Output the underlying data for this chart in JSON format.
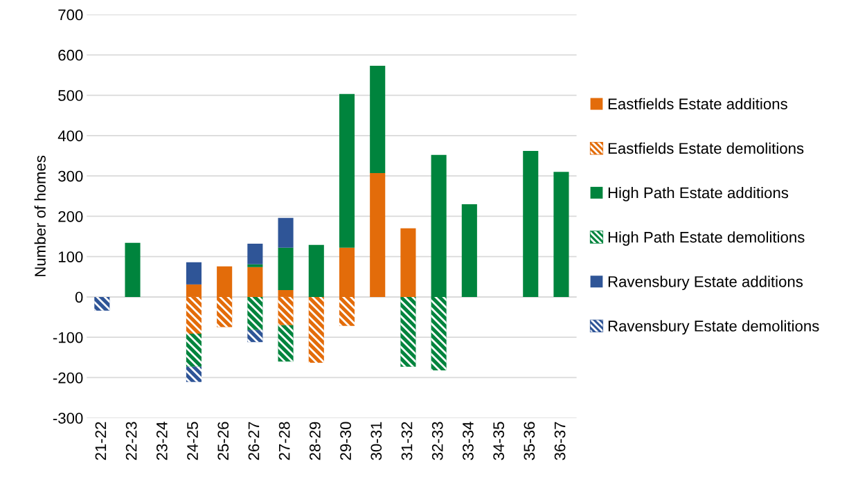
{
  "chart_data": {
    "type": "bar",
    "stacked": true,
    "ylabel": "Number of homes",
    "categories": [
      "21-22",
      "22-23",
      "23-24",
      "24-25",
      "25-26",
      "26-27",
      "27-28",
      "28-29",
      "29-30",
      "30-31",
      "31-32",
      "32-33",
      "33-34",
      "34-35",
      "35-36",
      "36-37"
    ],
    "series": [
      {
        "name": "Eastfields Estate additions",
        "color": "#e36c0a",
        "values": [
          null,
          null,
          null,
          31,
          76,
          74,
          17,
          null,
          122,
          307,
          170,
          null,
          null,
          null,
          null,
          null
        ]
      },
      {
        "name": "Eastfields Estate demolitions",
        "color": "#e36c0a",
        "values": [
          null,
          null,
          null,
          -91,
          -75,
          null,
          -70,
          -163,
          -72,
          null,
          null,
          null,
          null,
          null,
          null,
          null
        ]
      },
      {
        "name": "High Path Estate additions",
        "color": "#00843d",
        "values": [
          null,
          134,
          null,
          null,
          null,
          7,
          105,
          129,
          381,
          266,
          null,
          352,
          230,
          null,
          362,
          310
        ]
      },
      {
        "name": "High Path Estate demolitions",
        "color": "#00843d",
        "values": [
          null,
          null,
          null,
          -82,
          null,
          -82,
          -90,
          null,
          null,
          null,
          -173,
          -182,
          null,
          null,
          null,
          null
        ]
      },
      {
        "name": "Ravensbury Estate additions",
        "color": "#2f5597",
        "values": [
          null,
          null,
          null,
          55,
          null,
          51,
          74,
          null,
          null,
          null,
          null,
          null,
          null,
          null,
          null,
          null
        ]
      },
      {
        "name": "Ravensbury Estate demolitions",
        "color": "#2f5597",
        "values": [
          -34,
          null,
          null,
          -38,
          null,
          -30,
          null,
          null,
          null,
          null,
          null,
          null,
          null,
          null,
          null,
          null
        ]
      }
    ],
    "ylim": [
      -300,
      700
    ],
    "yticks": [
      -300,
      -200,
      -100,
      0,
      100,
      200,
      300,
      400,
      500,
      600,
      700
    ],
    "grid": "y",
    "legend": "right"
  }
}
